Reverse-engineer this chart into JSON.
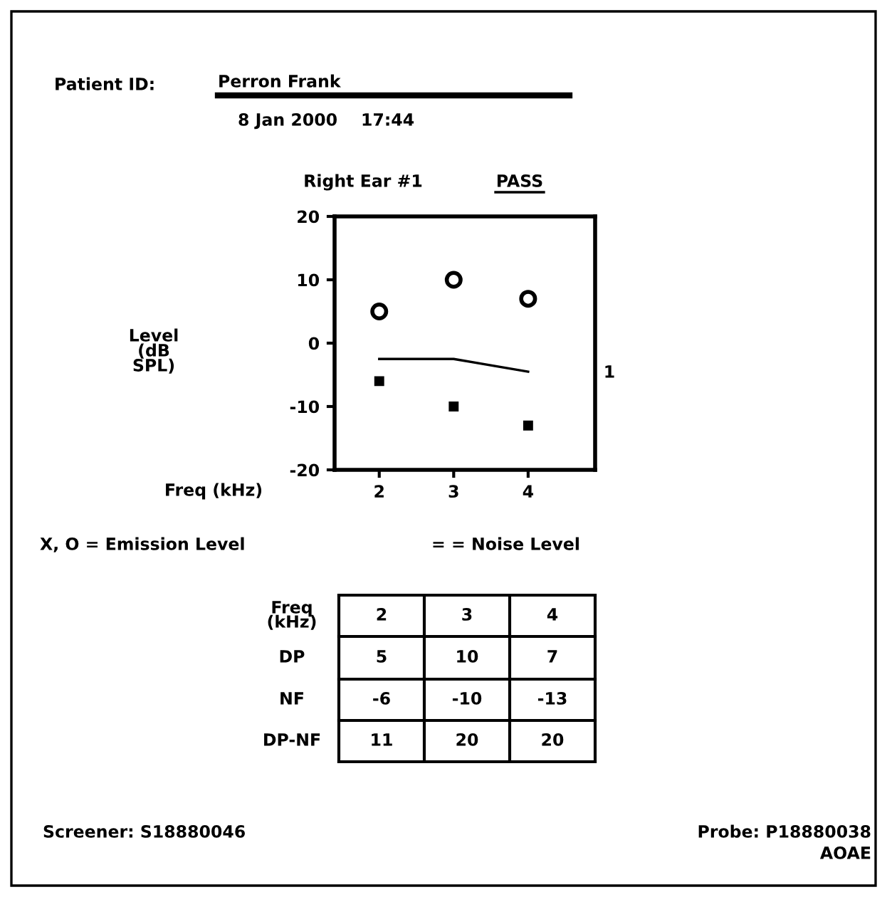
{
  "chart_data": {
    "type": "scatter",
    "title": "Right Ear #1",
    "xlabel": "Freq (kHz)",
    "x": [
      2,
      3,
      4
    ],
    "series": [
      {
        "color": "#000000",
        "marker": "circle",
        "values": [
          5,
          10,
          7
        ]
      },
      {
        "color": "#000000",
        "marker": "square",
        "values": [
          -6,
          -10,
          -13
        ]
      },
      {
        "type": "line",
        "color": "#000000",
        "line_style": "solid",
        "values": [
          -2.5,
          -2.5,
          -4.5
        ]
      }
    ],
    "xlim": [
      1.4,
      4.9
    ],
    "xticks": [
      2,
      3,
      4
    ],
    "ylim": [
      -20,
      20
    ],
    "yticks": [
      -20,
      -10,
      0,
      10,
      20
    ],
    "annotations": [
      "Patient ID:",
      "Perron Frank",
      "8 Jan 2000    17:44",
      "PASS",
      "1",
      "X, O = Emission Level",
      "= = Noise Level",
      "Level\n(dB\nSPL)",
      "Freq\n(kHz)",
      "2",
      "3",
      "4",
      "DP",
      "5",
      "10",
      "7",
      "NF",
      "-6",
      "-10",
      "-13",
      "DP-NF",
      "11",
      "20",
      "20",
      "Screener: S18880046",
      "Probe: P18880038",
      "AOAE"
    ]
  }
}
